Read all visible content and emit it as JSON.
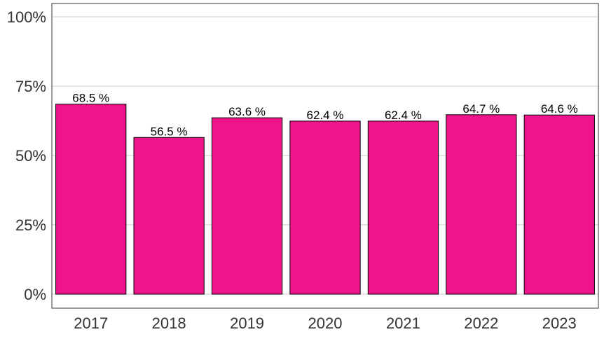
{
  "chart_data": {
    "type": "bar",
    "title": "",
    "xlabel": "",
    "ylabel": "",
    "categories": [
      "2017",
      "2018",
      "2019",
      "2020",
      "2021",
      "2022",
      "2023"
    ],
    "values": [
      68.5,
      56.5,
      63.6,
      62.4,
      62.4,
      64.7,
      64.6
    ],
    "data_labels": [
      "68.5 %",
      "56.5 %",
      "63.6 %",
      "62.4 %",
      "62.4 %",
      "64.7 %",
      "64.6 %"
    ],
    "ylim": [
      0,
      100
    ],
    "yticks": [
      0,
      25,
      50,
      75,
      100
    ],
    "ytick_labels": [
      "0%",
      "25%",
      "50%",
      "75%",
      "100%"
    ],
    "grid": true,
    "legend": "none",
    "colors": {
      "bar_fill": "#ED1589",
      "bar_stroke": "#000000"
    }
  }
}
